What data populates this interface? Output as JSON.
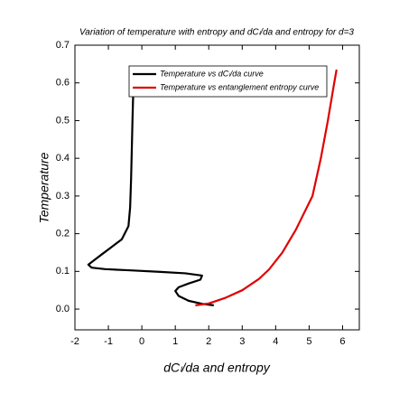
{
  "chart_data": {
    "type": "line",
    "title": "Variation of temperature with entropy and dCₗ/da and entropy for d=3",
    "x_label": "dCₗ/da and entropy",
    "y_label": "Temperature",
    "xlim": [
      -2,
      6.5
    ],
    "ylim": [
      -0.055,
      0.7
    ],
    "xticks": [
      -2,
      -1,
      0,
      1,
      2,
      3,
      4,
      5,
      6
    ],
    "yticks": [
      {
        "value": 0,
        "label": "0.0"
      },
      0.1,
      0.2,
      0.3,
      0.4,
      0.5,
      0.6,
      0.7
    ],
    "grid": false,
    "legend": "upper center",
    "series": [
      {
        "name": "Temperature vs dCₗ/da curve",
        "color": "#000000",
        "x": [
          -0.24,
          -0.28,
          -0.32,
          -0.35,
          -0.4,
          -0.6,
          -0.9,
          -1.2,
          -1.45,
          -1.6,
          -1.5,
          -1.1,
          -0.4,
          0.5,
          1.3,
          1.8,
          1.75,
          1.4,
          1.1,
          1.0,
          1.1,
          1.4,
          1.8,
          2.15
        ],
        "values": [
          0.635,
          0.5,
          0.35,
          0.27,
          0.22,
          0.185,
          0.165,
          0.145,
          0.128,
          0.118,
          0.11,
          0.106,
          0.103,
          0.099,
          0.095,
          0.089,
          0.078,
          0.068,
          0.058,
          0.048,
          0.035,
          0.022,
          0.014,
          0.01
        ]
      },
      {
        "name": "Temperature vs entanglement entropy curve",
        "color": "#e00000",
        "x": [
          1.6,
          2.0,
          2.5,
          3.0,
          3.5,
          3.8,
          4.2,
          4.6,
          5.1,
          5.35,
          5.56,
          5.75,
          5.82
        ],
        "values": [
          0.01,
          0.015,
          0.03,
          0.05,
          0.08,
          0.105,
          0.15,
          0.21,
          0.3,
          0.4,
          0.5,
          0.6,
          0.635
        ]
      }
    ]
  }
}
